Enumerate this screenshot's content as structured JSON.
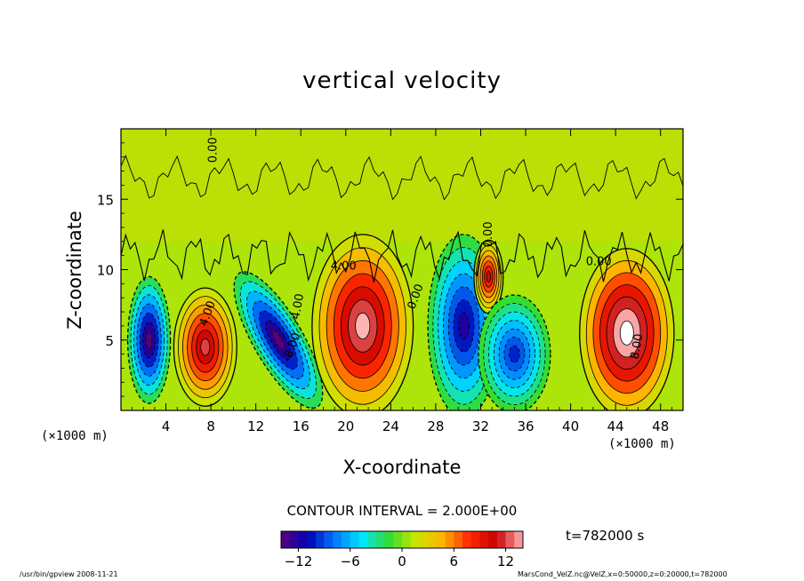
{
  "chart_data": {
    "type": "heatmap",
    "title": "vertical velocity",
    "xlabel": "X-coordinate",
    "ylabel": "Z-coordinate",
    "x_unit": "(×1000 m)",
    "x_ticks": [
      4,
      8,
      12,
      16,
      20,
      24,
      28,
      32,
      36,
      40,
      44,
      48
    ],
    "y_ticks": [
      5,
      10,
      15
    ],
    "xlim": [
      0,
      50
    ],
    "ylim": [
      0,
      20
    ],
    "contour_interval_label": "CONTOUR INTERVAL = 2.000E+00",
    "contour_labels": [
      "0.00",
      "4.00",
      "8.00",
      "-4.00",
      "-8.00"
    ],
    "time_label": "t=782000 s",
    "colorbar": {
      "vmin": -14,
      "vmax": 14,
      "ticks": [
        -12,
        -6,
        0,
        6,
        12
      ],
      "colors": [
        "#5a0078",
        "#0000b4",
        "#0078ff",
        "#00e6ff",
        "#32dc32",
        "#c8e600",
        "#ffb400",
        "#ff2800",
        "#c80000",
        "#ffb4b4"
      ]
    },
    "cells": [
      {
        "x": 2.5,
        "z": 5,
        "value": -14
      },
      {
        "x": 7.5,
        "z": 4.5,
        "value": 12
      },
      {
        "x": 14,
        "z": 5,
        "value": -14
      },
      {
        "x": 21.5,
        "z": 6,
        "value": 14
      },
      {
        "x": 30.5,
        "z": 6,
        "value": -12
      },
      {
        "x": 32.7,
        "z": 9.5,
        "value": 10
      },
      {
        "x": 35,
        "z": 4,
        "value": -10
      },
      {
        "x": 45,
        "z": 5.5,
        "value": 16
      }
    ]
  },
  "footer": {
    "left": "/usr/bin/gpview  2008-11-21",
    "right": "MarsCond_VelZ.nc@VelZ,x=0:50000,z=0:20000,t=782000"
  }
}
